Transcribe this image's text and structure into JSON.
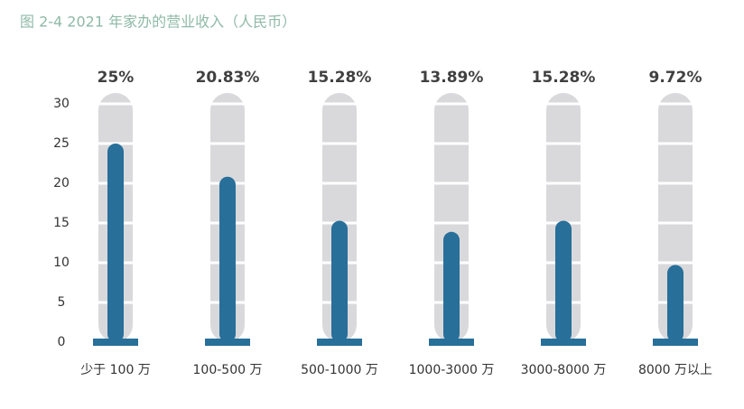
{
  "chart_data": {
    "type": "bar",
    "title": "图 2-4 2021 年家办的营业收入（人民币）",
    "categories": [
      "少于 100 万",
      "100-500 万",
      "500-1000 万",
      "1000-3000 万",
      "3000-8000 万",
      "8000 万以上"
    ],
    "values": [
      25,
      20.83,
      15.28,
      13.89,
      15.28,
      9.72
    ],
    "value_labels": [
      "25%",
      "20.83%",
      "15.28%",
      "13.89%",
      "15.28%",
      "9.72%"
    ],
    "color": "#286f9a",
    "ylim": [
      0,
      30
    ],
    "yticks": [
      0,
      5,
      10,
      15,
      20,
      25,
      30
    ],
    "grid": true
  }
}
